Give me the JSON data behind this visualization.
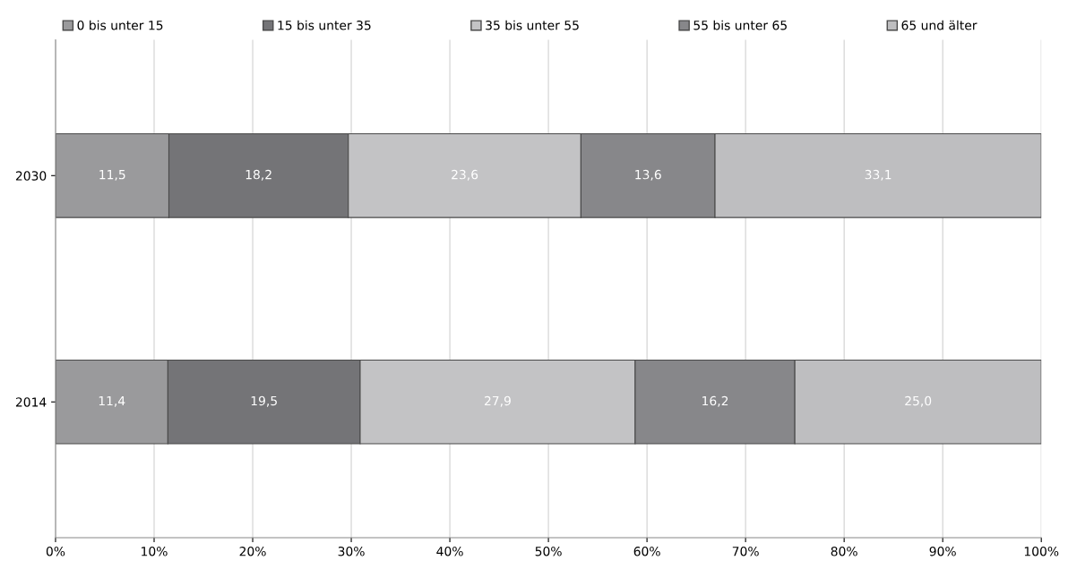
{
  "chart_data": {
    "type": "bar",
    "orientation": "horizontal",
    "stacked": true,
    "categories": [
      "2030",
      "2014"
    ],
    "series": [
      {
        "name": "0 bis unter 15",
        "color": "#9a9a9c",
        "values": [
          11.5,
          11.4
        ],
        "value_labels": [
          "11,5",
          "11,4"
        ]
      },
      {
        "name": "15 bis unter 35",
        "color": "#747477",
        "values": [
          18.2,
          19.5
        ],
        "value_labels": [
          "18,2",
          "19,5"
        ]
      },
      {
        "name": "35 bis unter 55",
        "color": "#c3c3c5",
        "values": [
          23.6,
          27.9
        ],
        "value_labels": [
          "23,6",
          "27,9"
        ]
      },
      {
        "name": "55 bis unter 65",
        "color": "#87878a",
        "values": [
          13.6,
          16.2
        ],
        "value_labels": [
          "13,6",
          "16,2"
        ]
      },
      {
        "name": "65 und älter",
        "color": "#bebec0",
        "values": [
          33.1,
          25.0
        ],
        "value_labels": [
          "33,1",
          "25,0"
        ]
      }
    ],
    "xlim": [
      0,
      100
    ],
    "xticks": [
      {
        "value": 0,
        "label": "0%"
      },
      {
        "value": 10,
        "label": "10%"
      },
      {
        "value": 20,
        "label": "20%"
      },
      {
        "value": 30,
        "label": "30%"
      },
      {
        "value": 40,
        "label": "40%"
      },
      {
        "value": 50,
        "label": "50%"
      },
      {
        "value": 60,
        "label": "60%"
      },
      {
        "value": 70,
        "label": "70%"
      },
      {
        "value": 80,
        "label": "80%"
      },
      {
        "value": 90,
        "label": "90%"
      },
      {
        "value": 100,
        "label": "100%"
      }
    ],
    "grid": "x",
    "legend": "top"
  }
}
